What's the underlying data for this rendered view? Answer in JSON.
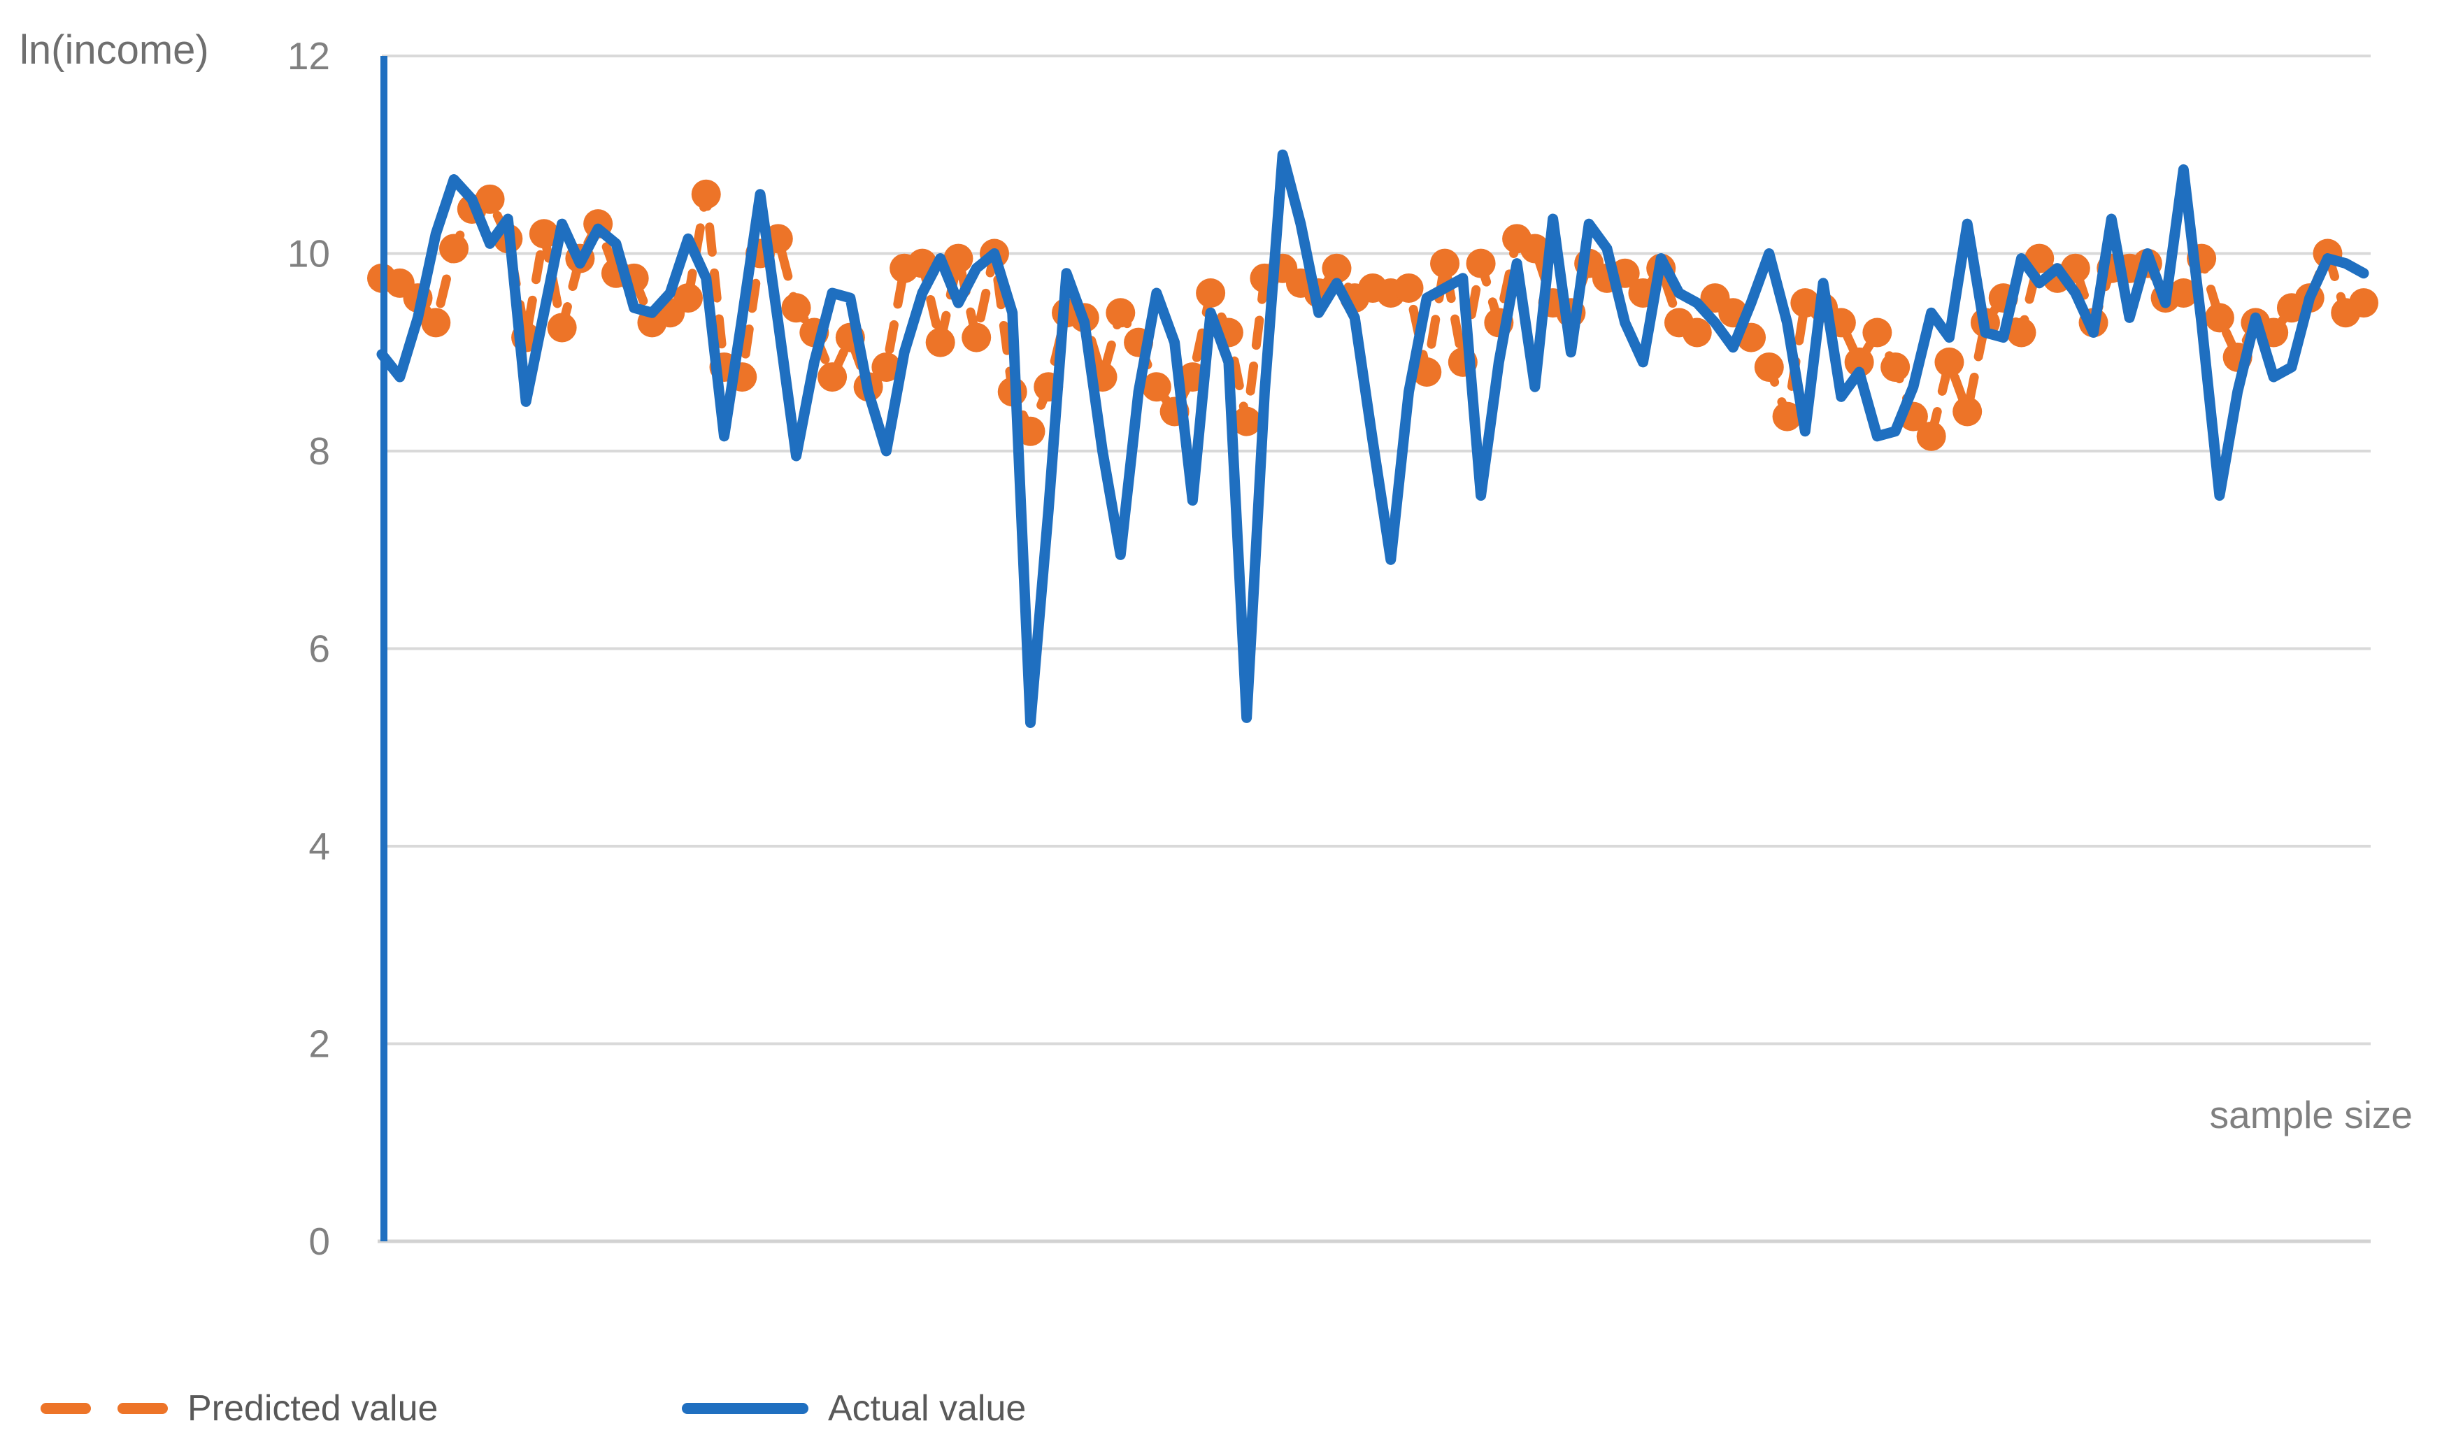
{
  "chart": {
    "y_axis_title": "ln(income)",
    "x_axis_label": "sample size",
    "colors": {
      "grid": "#D9D9D9",
      "baseline": "#D2D2D2",
      "tick_text": "#808080",
      "title_text": "#6F6F6F",
      "legend_text": "#595959",
      "y_axis_line": "#1F6FC0",
      "predicted": "#ED7428",
      "actual": "#1F6FC0",
      "background": "#FFFFFF"
    }
  },
  "chart_data": {
    "type": "line",
    "title": "",
    "ylabel": "ln(income)",
    "xlabel": "sample size",
    "ylim": [
      0,
      12
    ],
    "y_ticks": [
      0,
      2,
      4,
      6,
      8,
      10,
      12
    ],
    "x_tick_labels": [],
    "grid": "horizontal",
    "legend_position": "bottom-left",
    "series": [
      {
        "name": "Predicted value",
        "style": "dashed-line-with-round-markers",
        "color": "#ED7428",
        "values": [
          9.75,
          9.7,
          9.55,
          9.3,
          10.05,
          10.45,
          10.55,
          10.15,
          9.15,
          10.2,
          9.25,
          9.95,
          10.3,
          9.8,
          9.75,
          9.3,
          9.4,
          9.55,
          10.6,
          8.85,
          8.75,
          10.0,
          10.15,
          9.45,
          9.2,
          8.75,
          9.15,
          8.65,
          8.85,
          9.85,
          9.9,
          9.1,
          9.95,
          9.15,
          10.0,
          8.6,
          8.2,
          8.65,
          9.4,
          9.35,
          8.75,
          9.4,
          9.1,
          8.65,
          8.4,
          8.75,
          9.6,
          9.2,
          8.3,
          9.75,
          9.85,
          9.7,
          9.6,
          9.85,
          9.55,
          9.65,
          9.6,
          9.65,
          8.8,
          9.9,
          8.9,
          9.9,
          9.3,
          10.15,
          10.05,
          9.5,
          9.4,
          9.9,
          9.75,
          9.8,
          9.6,
          9.85,
          9.3,
          9.2,
          9.55,
          9.4,
          9.15,
          8.85,
          8.35,
          9.5,
          9.45,
          9.3,
          8.9,
          9.2,
          8.85,
          8.35,
          8.15,
          8.9,
          8.4,
          9.3,
          9.55,
          9.2,
          9.95,
          9.75,
          9.85,
          9.3,
          9.85,
          9.85,
          9.9,
          9.55,
          9.6,
          9.95,
          9.35,
          8.95,
          9.3,
          9.2,
          9.45,
          9.55,
          10.0,
          9.4,
          9.5
        ]
      },
      {
        "name": "Actual value",
        "style": "solid-line",
        "color": "#1F6FC0",
        "values": [
          8.98,
          8.75,
          9.35,
          10.2,
          10.75,
          10.55,
          10.1,
          10.35,
          8.5,
          9.4,
          10.3,
          9.9,
          10.25,
          10.1,
          9.45,
          9.4,
          9.6,
          10.15,
          9.75,
          8.15,
          9.35,
          10.6,
          9.3,
          7.95,
          8.9,
          9.6,
          9.55,
          8.6,
          8.0,
          9.0,
          9.6,
          9.95,
          9.5,
          9.85,
          10.0,
          9.4,
          5.25,
          7.4,
          9.8,
          9.3,
          8.0,
          6.95,
          8.6,
          9.6,
          9.1,
          7.5,
          9.4,
          8.9,
          5.3,
          8.6,
          11.0,
          10.3,
          9.4,
          9.7,
          9.35,
          8.1,
          6.9,
          8.6,
          9.55,
          9.65,
          9.75,
          7.55,
          8.9,
          9.9,
          8.65,
          10.35,
          9.0,
          10.3,
          10.05,
          9.3,
          8.9,
          9.95,
          9.6,
          9.5,
          9.3,
          9.05,
          9.5,
          10.0,
          9.3,
          8.2,
          9.7,
          8.55,
          8.8,
          8.15,
          8.2,
          8.65,
          9.4,
          9.15,
          10.3,
          9.2,
          9.15,
          9.95,
          9.7,
          9.85,
          9.6,
          9.2,
          10.35,
          9.35,
          10.0,
          9.5,
          10.85,
          9.3,
          7.55,
          8.6,
          9.35,
          8.75,
          8.85,
          9.55,
          9.95,
          9.9,
          9.8
        ]
      }
    ]
  }
}
